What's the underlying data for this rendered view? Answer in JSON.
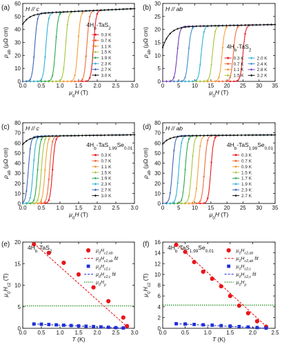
{
  "chart_data": [
    {
      "panel": "(a)",
      "type": "line",
      "field": "H // c",
      "sample": "4Hb-TaS2",
      "xlabel": "μ0H (T)",
      "ylabel": "ρab (μΩ cm)",
      "xlim": [
        0,
        3
      ],
      "ylim": [
        0,
        60
      ],
      "xticks": [
        "0.0",
        "0.5",
        "1.0",
        "1.5",
        "2.0",
        "2.5",
        "3.0"
      ],
      "yticks": [
        "0",
        "10",
        "20",
        "30",
        "40",
        "50",
        "60"
      ],
      "rn": 52,
      "rn_slope": 1.0,
      "legend_cols": 1,
      "legend_place": "middle-right",
      "series": [
        {
          "name": "0.3 K",
          "color": "#e8161b",
          "marker": "circle",
          "hc2": 1.9
        },
        {
          "name": "0.7 K",
          "color": "#ef6a3a",
          "marker": "circle",
          "hc2": 1.72
        },
        {
          "name": "1.1 K",
          "color": "#f4a13a",
          "marker": "circle",
          "hc2": 1.48
        },
        {
          "name": "1.5 K",
          "color": "#a8c43a",
          "marker": "diamond",
          "hc2": 1.15
        },
        {
          "name": "1.9 K",
          "color": "#27a84a",
          "marker": "diamond",
          "hc2": 0.88
        },
        {
          "name": "2.3 K",
          "color": "#2ab0d8",
          "marker": "diamond",
          "hc2": 0.62
        },
        {
          "name": "2.7 K",
          "color": "#3a62b8",
          "marker": "diamond",
          "hc2": 0.32
        },
        {
          "name": "3.0 K",
          "color": "#111111",
          "marker": "diamond",
          "hc2": 0.05
        }
      ]
    },
    {
      "panel": "(b)",
      "type": "line",
      "field": "H // ab",
      "sample": "4Hb-TaS2",
      "xlabel": "μ0H (T)",
      "ylabel": "ρab (μΩ cm)",
      "xlim": [
        0,
        35
      ],
      "ylim": [
        0,
        30
      ],
      "xticks": [
        "0",
        "5",
        "10",
        "15",
        "20",
        "25",
        "30",
        "35"
      ],
      "yticks": [
        "0",
        "5",
        "10",
        "15",
        "20",
        "25",
        "30"
      ],
      "rn": 21,
      "rn_slope": 0.22,
      "legend_cols": 2,
      "legend_place": "bottom-right",
      "series": [
        {
          "name": "0.3 K",
          "color": "#e8161b",
          "marker": "circle",
          "hc2": 25.0
        },
        {
          "name": "0.7 K",
          "color": "#ef6a3a",
          "marker": "circle",
          "hc2": 22.0
        },
        {
          "name": "1.1 K",
          "color": "#f4a13a",
          "marker": "circle",
          "hc2": 18.5
        },
        {
          "name": "1.5 K",
          "color": "#a8c43a",
          "marker": "diamond",
          "hc2": 15.5
        },
        {
          "name": "2.0 K",
          "color": "#2ab0d8",
          "marker": "diamond",
          "hc2": 12.0
        },
        {
          "name": "2.4 K",
          "color": "#3a8ad0",
          "marker": "diamond",
          "hc2": 8.0
        },
        {
          "name": "2.8 K",
          "color": "#6a3ab8",
          "marker": "diamond",
          "hc2": 4.5
        },
        {
          "name": "3.2 K",
          "color": "#111111",
          "marker": "diamond",
          "hc2": 0.5
        }
      ]
    },
    {
      "panel": "(c)",
      "type": "line",
      "field": "H // c",
      "sample": "4Hb-TaS1.99Se0.01",
      "xlabel": "μ0H (T)",
      "ylabel": "ρab (μΩ cm)",
      "xlim": [
        0,
        3
      ],
      "ylim": [
        0,
        80
      ],
      "xticks": [
        "0.0",
        "0.5",
        "1.0",
        "1.5",
        "2.0",
        "2.5",
        "3.0"
      ],
      "yticks": [
        "0",
        "10",
        "20",
        "30",
        "40",
        "50",
        "60",
        "70",
        "80"
      ],
      "rn": 66.5,
      "rn_slope": 0.4,
      "legend_cols": 1,
      "legend_place": "middle-right",
      "series": [
        {
          "name": "0.3 K",
          "color": "#e8161b",
          "marker": "circle",
          "hc2": 0.8
        },
        {
          "name": "0.7 K",
          "color": "#ef6a3a",
          "marker": "circle",
          "hc2": 0.72
        },
        {
          "name": "1.1 K",
          "color": "#f4a13a",
          "marker": "circle",
          "hc2": 0.6
        },
        {
          "name": "1.5 K",
          "color": "#a8c43a",
          "marker": "diamond",
          "hc2": 0.5
        },
        {
          "name": "1.9 K",
          "color": "#27a84a",
          "marker": "diamond",
          "hc2": 0.4
        },
        {
          "name": "2.3 K",
          "color": "#2ab0d8",
          "marker": "diamond",
          "hc2": 0.28
        },
        {
          "name": "2.7 K",
          "color": "#3a62b8",
          "marker": "diamond",
          "hc2": 0.15
        },
        {
          "name": "3.0 K",
          "color": "#111111",
          "marker": "diamond",
          "hc2": 0.02
        }
      ]
    },
    {
      "panel": "(d)",
      "type": "line",
      "field": "H // ab",
      "sample": "4Hb-TaS1.99Se0.01",
      "xlabel": "μ0H (T)",
      "ylabel": "ρab (μΩ cm)",
      "xlim": [
        0,
        35
      ],
      "ylim": [
        0,
        80
      ],
      "xticks": [
        "0",
        "5",
        "10",
        "15",
        "20",
        "25",
        "30",
        "35"
      ],
      "yticks": [
        "0",
        "10",
        "20",
        "30",
        "40",
        "50",
        "60",
        "70",
        "80"
      ],
      "rn": 67,
      "rn_slope": 0.25,
      "legend_cols": 1,
      "legend_place": "middle-right",
      "series": [
        {
          "name": "0.3 K",
          "color": "#e8161b",
          "marker": "circle",
          "hc2": 15.0
        },
        {
          "name": "0.7 K",
          "color": "#ef6a3a",
          "marker": "circle",
          "hc2": 13.0
        },
        {
          "name": "0.9 K",
          "color": "#f4a13a",
          "marker": "circle",
          "hc2": 11.0
        },
        {
          "name": "1.5 K",
          "color": "#a8c43a",
          "marker": "diamond",
          "hc2": 9.0
        },
        {
          "name": "1.7 K",
          "color": "#27a84a",
          "marker": "diamond",
          "hc2": 7.0
        },
        {
          "name": "1.9 K",
          "color": "#2ab0d8",
          "marker": "diamond",
          "hc2": 5.0
        },
        {
          "name": "2.3 K",
          "color": "#3a62b8",
          "marker": "diamond",
          "hc2": 3.0
        },
        {
          "name": "2.7 K",
          "color": "#111111",
          "marker": "diamond",
          "hc2": 0.5
        }
      ]
    },
    {
      "panel": "(e)",
      "type": "scatter",
      "sample": "4Hb-TaS2",
      "xlabel": "T (K)",
      "ylabel": "μ0Hc2 (T)",
      "xlim": [
        0,
        3
      ],
      "ylim": [
        0,
        20
      ],
      "xticks": [
        "0.0",
        "0.5",
        "1.0",
        "1.5",
        "2.0",
        "2.5",
        "3.0"
      ],
      "yticks": [
        "0",
        "5",
        "10",
        "15",
        "20"
      ],
      "hp": 5.2,
      "hc2_ab": {
        "x": [
          0.3,
          0.7,
          1.1,
          1.5,
          1.9,
          2.3,
          2.7,
          2.8
        ],
        "y": [
          19.5,
          17.5,
          15.2,
          12.5,
          9.5,
          6.3,
          2.5,
          0.5
        ]
      },
      "hc2_ab_fit": [
        [
          0.3,
          19.7
        ],
        [
          2.85,
          0
        ]
      ],
      "hc2_c": {
        "x": [
          0.3,
          0.5,
          0.7,
          0.9,
          1.1,
          1.3,
          1.5,
          1.7,
          1.9,
          2.1,
          2.3,
          2.5,
          2.7
        ],
        "y": [
          1.0,
          0.95,
          0.88,
          0.8,
          0.72,
          0.64,
          0.56,
          0.48,
          0.4,
          0.32,
          0.24,
          0.15,
          0.08
        ]
      },
      "hc2_c_fit": [
        [
          0.3,
          1.0
        ],
        [
          2.85,
          0
        ]
      ],
      "legend": [
        {
          "label": "μ0Hc2,ab",
          "style": "red-circle"
        },
        {
          "label": "μ0Hc2,ab fit",
          "style": "red-dash"
        },
        {
          "label": "μ0Hc2,c",
          "style": "blue-square"
        },
        {
          "label": "μ0Hc2,c fit",
          "style": "blue-dash"
        },
        {
          "label": "μ0Hp",
          "style": "green-dot"
        }
      ]
    },
    {
      "panel": "(f)",
      "type": "scatter",
      "sample": "4Hb-TaS1.99Se0.01",
      "xlabel": "T (K)",
      "ylabel": "μ0Hc2 (T)",
      "xlim": [
        0,
        2.5
      ],
      "ylim": [
        0,
        16
      ],
      "xticks": [
        "0.0",
        "0.5",
        "1.0",
        "1.5",
        "2.0",
        "2.5"
      ],
      "yticks": [
        "0",
        "2",
        "4",
        "6",
        "8",
        "10",
        "12",
        "14",
        "16"
      ],
      "hp": 4.3,
      "hc2_ab": {
        "x": [
          0.3,
          0.5,
          0.7,
          0.9,
          1.1,
          1.3,
          1.5,
          1.7,
          1.9,
          2.1,
          2.3
        ],
        "y": [
          15.5,
          14.2,
          12.3,
          10.5,
          9.2,
          7.8,
          6.0,
          4.2,
          2.8,
          1.3,
          0.3
        ]
      },
      "hc2_ab_fit": [
        [
          0.3,
          15.7
        ],
        [
          2.35,
          0
        ]
      ],
      "hc2_c": {
        "x": [
          0.3,
          0.5,
          0.7,
          0.9,
          1.1,
          1.3,
          1.5,
          1.7,
          1.9,
          2.1,
          2.3
        ],
        "y": [
          0.85,
          0.8,
          0.72,
          0.65,
          0.58,
          0.5,
          0.42,
          0.33,
          0.24,
          0.14,
          0.05
        ]
      },
      "hc2_c_fit": [
        [
          0.3,
          0.85
        ],
        [
          2.35,
          0
        ]
      ],
      "legend": [
        {
          "label": "μ0Hc2,ab",
          "style": "red-circle"
        },
        {
          "label": "μ0Hc2,ab fit",
          "style": "red-dash"
        },
        {
          "label": "μ0Hc2,c",
          "style": "blue-square"
        },
        {
          "label": "μ0Hc2,c fit",
          "style": "blue-dash"
        },
        {
          "label": "μ0Hp",
          "style": "green-dot"
        }
      ]
    }
  ]
}
